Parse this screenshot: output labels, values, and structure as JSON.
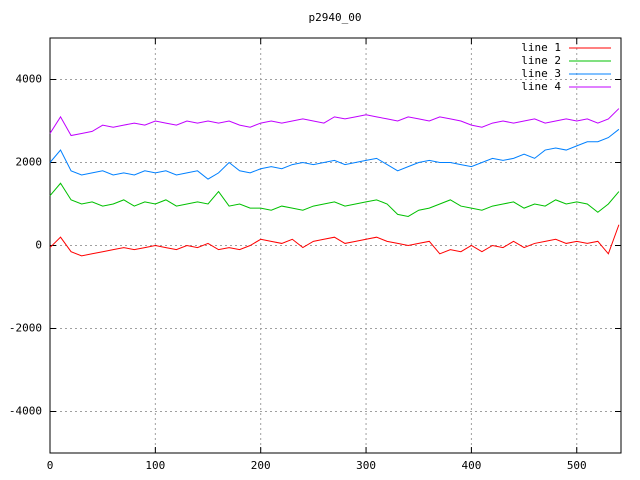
{
  "chart_data": {
    "type": "line",
    "title": "p2940_00",
    "x": [
      0,
      10,
      20,
      30,
      40,
      50,
      60,
      70,
      80,
      90,
      100,
      110,
      120,
      130,
      140,
      150,
      160,
      170,
      180,
      190,
      200,
      210,
      220,
      230,
      240,
      250,
      260,
      270,
      280,
      290,
      300,
      310,
      320,
      330,
      340,
      350,
      360,
      370,
      380,
      390,
      400,
      410,
      420,
      430,
      440,
      450,
      460,
      470,
      480,
      490,
      500,
      510,
      520,
      530,
      540
    ],
    "series": [
      {
        "name": "line 1",
        "color": "#ff0000",
        "values": [
          -50,
          200,
          -150,
          -250,
          -200,
          -150,
          -100,
          -50,
          -100,
          -50,
          0,
          -50,
          -100,
          0,
          -50,
          50,
          -100,
          -50,
          -100,
          0,
          150,
          100,
          50,
          150,
          -50,
          100,
          150,
          200,
          50,
          100,
          150,
          200,
          100,
          50,
          0,
          50,
          100,
          -200,
          -100,
          -150,
          0,
          -150,
          0,
          -50,
          100,
          -50,
          50,
          100,
          150,
          50,
          100,
          50,
          100,
          -200,
          500
        ]
      },
      {
        "name": "line 2",
        "color": "#00c000",
        "values": [
          1200,
          1500,
          1100,
          1000,
          1050,
          950,
          1000,
          1100,
          950,
          1050,
          1000,
          1100,
          950,
          1000,
          1050,
          1000,
          1300,
          950,
          1000,
          900,
          900,
          850,
          950,
          900,
          850,
          950,
          1000,
          1050,
          950,
          1000,
          1050,
          1100,
          1000,
          750,
          700,
          850,
          900,
          1000,
          1100,
          950,
          900,
          850,
          950,
          1000,
          1050,
          900,
          1000,
          950,
          1100,
          1000,
          1050,
          1000,
          800,
          1000,
          1300
        ]
      },
      {
        "name": "line 3",
        "color": "#0080ff",
        "values": [
          2000,
          2300,
          1800,
          1700,
          1750,
          1800,
          1700,
          1750,
          1700,
          1800,
          1750,
          1800,
          1700,
          1750,
          1800,
          1600,
          1750,
          2000,
          1800,
          1750,
          1850,
          1900,
          1850,
          1950,
          2000,
          1950,
          2000,
          2050,
          1950,
          2000,
          2050,
          2100,
          1950,
          1800,
          1900,
          2000,
          2050,
          2000,
          2000,
          1950,
          1900,
          2000,
          2100,
          2050,
          2100,
          2200,
          2100,
          2300,
          2350,
          2300,
          2400,
          2500,
          2500,
          2600,
          2800
        ]
      },
      {
        "name": "line 4",
        "color": "#c000ff",
        "values": [
          2700,
          3100,
          2650,
          2700,
          2750,
          2900,
          2850,
          2900,
          2950,
          2900,
          3000,
          2950,
          2900,
          3000,
          2950,
          3000,
          2950,
          3000,
          2900,
          2850,
          2950,
          3000,
          2950,
          3000,
          3050,
          3000,
          2950,
          3100,
          3050,
          3100,
          3150,
          3100,
          3050,
          3000,
          3100,
          3050,
          3000,
          3100,
          3050,
          3000,
          2900,
          2850,
          2950,
          3000,
          2950,
          3000,
          3050,
          2950,
          3000,
          3050,
          3000,
          3050,
          2950,
          3050,
          3300
        ]
      }
    ],
    "xlim": [
      0,
      542
    ],
    "xticks": [
      0,
      100,
      200,
      300,
      400,
      500
    ],
    "ylim": [
      -5000,
      5000
    ],
    "yticks": [
      -4000,
      -2000,
      0,
      2000,
      4000
    ],
    "grid": true,
    "legend": "top-right"
  }
}
